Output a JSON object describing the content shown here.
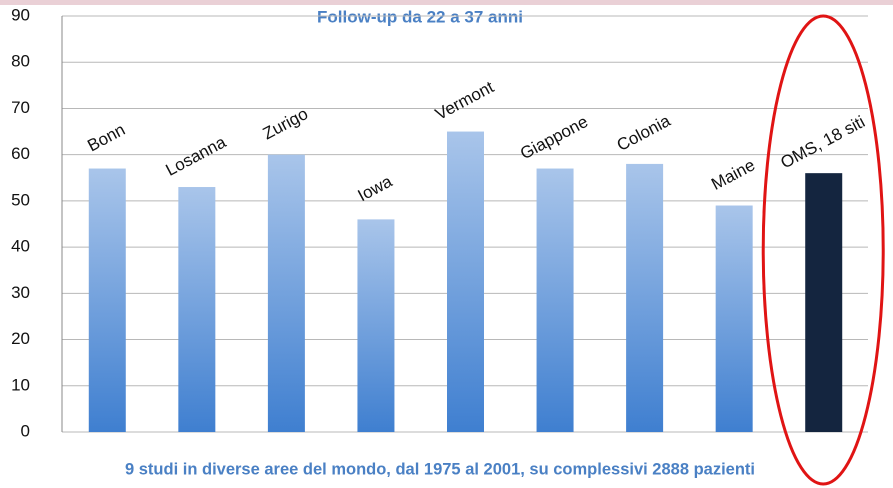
{
  "chart_data": {
    "type": "bar",
    "title": "Follow-up da 22 a 37 anni",
    "caption": "9 studi in diverse aree del mondo, dal 1975 al 2001, su complessivi 2888 pazienti",
    "categories": [
      "Bonn",
      "Losanna",
      "Zurigo",
      "Iowa",
      "Vermont",
      "Giappone",
      "Colonia",
      "Maine",
      "OMS, 18 siti"
    ],
    "values": [
      57,
      53,
      60,
      46,
      65,
      57,
      58,
      49,
      56
    ],
    "colors": [
      "#3f7fd0",
      "#3f7fd0",
      "#3f7fd0",
      "#3f7fd0",
      "#3f7fd0",
      "#3f7fd0",
      "#3f7fd0",
      "#3f7fd0",
      "#14253f"
    ],
    "ylim": [
      0,
      90
    ],
    "yticks": [
      0,
      10,
      20,
      30,
      40,
      50,
      60,
      70,
      80,
      90
    ],
    "grid": true
  }
}
